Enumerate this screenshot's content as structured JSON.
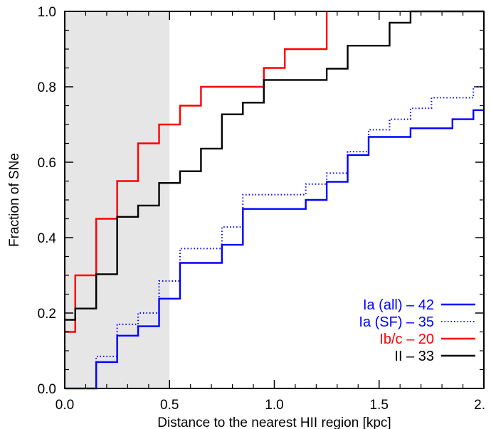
{
  "chart_data": {
    "type": "line",
    "step": true,
    "title": "",
    "xlabel": "Distance to the nearest HII region [kpc]",
    "ylabel": "Fraction of SNe",
    "xlim": [
      0.0,
      2.0
    ],
    "ylim": [
      0.0,
      1.0
    ],
    "x_ticks": [
      "0.0",
      "0.5",
      "1.0",
      "1.5",
      "2."
    ],
    "y_ticks": [
      "0.0",
      "0.2",
      "0.4",
      "0.6",
      "0.8",
      "1.0"
    ],
    "grid": false,
    "legend_position": "bottom-right",
    "shaded_region": {
      "x_from": 0.0,
      "x_to": 0.5,
      "color": "#e6e6e6"
    },
    "series": [
      {
        "name": "Ia (all) – 42",
        "color": "#0000ff",
        "style": "solid",
        "x": [
          0.0,
          0.15,
          0.25,
          0.35,
          0.45,
          0.55,
          0.75,
          0.85,
          1.15,
          1.25,
          1.35,
          1.45,
          1.65,
          1.85,
          1.95,
          2.0
        ],
        "y": [
          0.0,
          0.07,
          0.14,
          0.165,
          0.238,
          0.333,
          0.381,
          0.476,
          0.5,
          0.548,
          0.619,
          0.667,
          0.69,
          0.714,
          0.738,
          0.738
        ]
      },
      {
        "name": "Ia (SF) – 35",
        "color": "#0000ff",
        "style": "dotted",
        "x": [
          0.0,
          0.15,
          0.25,
          0.35,
          0.45,
          0.55,
          0.75,
          0.85,
          1.15,
          1.25,
          1.35,
          1.45,
          1.55,
          1.65,
          1.75,
          1.95,
          2.0
        ],
        "y": [
          0.0,
          0.085,
          0.17,
          0.2,
          0.285,
          0.371,
          0.428,
          0.514,
          0.542,
          0.571,
          0.628,
          0.686,
          0.714,
          0.743,
          0.771,
          0.8,
          0.828
        ]
      },
      {
        "name": "Ib/c – 20",
        "color": "#ff0000",
        "style": "solid",
        "x": [
          0.0,
          0.05,
          0.15,
          0.25,
          0.35,
          0.45,
          0.55,
          0.65,
          0.95,
          1.05,
          1.25
        ],
        "y": [
          0.15,
          0.3,
          0.45,
          0.55,
          0.65,
          0.7,
          0.75,
          0.8,
          0.85,
          0.9,
          1.0
        ]
      },
      {
        "name": "II – 33",
        "color": "#000000",
        "style": "solid",
        "x": [
          0.0,
          0.05,
          0.15,
          0.25,
          0.35,
          0.45,
          0.55,
          0.65,
          0.75,
          0.85,
          0.95,
          1.25,
          1.35,
          1.55,
          1.65,
          2.0
        ],
        "y": [
          0.182,
          0.212,
          0.303,
          0.455,
          0.485,
          0.545,
          0.576,
          0.636,
          0.727,
          0.758,
          0.818,
          0.848,
          0.909,
          0.97,
          1.0,
          1.0
        ]
      }
    ]
  }
}
